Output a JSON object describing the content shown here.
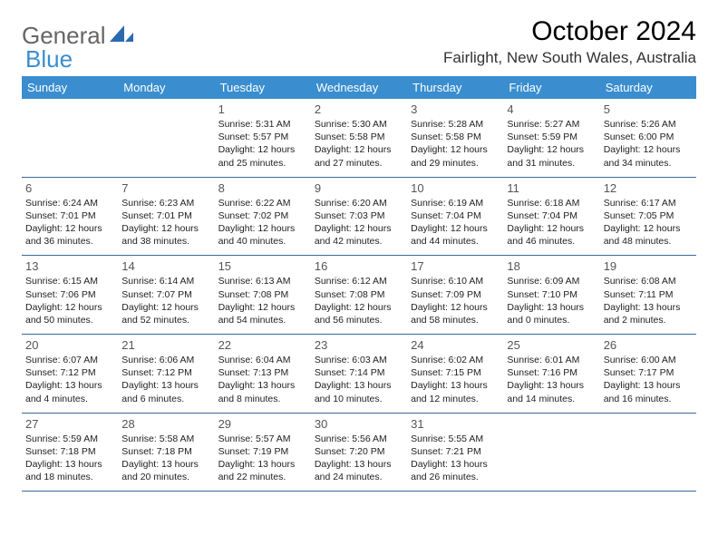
{
  "brand": {
    "word1": "General",
    "word2": "Blue"
  },
  "title": "October 2024",
  "location": "Fairlight, New South Wales, Australia",
  "colors": {
    "header_bg": "#3a8ecf",
    "header_text": "#ffffff",
    "divider": "#3a6a9a",
    "brand_blue": "#3a8ecf",
    "brand_gray": "#666666"
  },
  "weekdays": [
    "Sunday",
    "Monday",
    "Tuesday",
    "Wednesday",
    "Thursday",
    "Friday",
    "Saturday"
  ],
  "weeks": [
    [
      null,
      null,
      {
        "n": "1",
        "sunrise": "5:31 AM",
        "sunset": "5:57 PM",
        "dl1": "Daylight: 12 hours",
        "dl2": "and 25 minutes."
      },
      {
        "n": "2",
        "sunrise": "5:30 AM",
        "sunset": "5:58 PM",
        "dl1": "Daylight: 12 hours",
        "dl2": "and 27 minutes."
      },
      {
        "n": "3",
        "sunrise": "5:28 AM",
        "sunset": "5:58 PM",
        "dl1": "Daylight: 12 hours",
        "dl2": "and 29 minutes."
      },
      {
        "n": "4",
        "sunrise": "5:27 AM",
        "sunset": "5:59 PM",
        "dl1": "Daylight: 12 hours",
        "dl2": "and 31 minutes."
      },
      {
        "n": "5",
        "sunrise": "5:26 AM",
        "sunset": "6:00 PM",
        "dl1": "Daylight: 12 hours",
        "dl2": "and 34 minutes."
      }
    ],
    [
      {
        "n": "6",
        "sunrise": "6:24 AM",
        "sunset": "7:01 PM",
        "dl1": "Daylight: 12 hours",
        "dl2": "and 36 minutes."
      },
      {
        "n": "7",
        "sunrise": "6:23 AM",
        "sunset": "7:01 PM",
        "dl1": "Daylight: 12 hours",
        "dl2": "and 38 minutes."
      },
      {
        "n": "8",
        "sunrise": "6:22 AM",
        "sunset": "7:02 PM",
        "dl1": "Daylight: 12 hours",
        "dl2": "and 40 minutes."
      },
      {
        "n": "9",
        "sunrise": "6:20 AM",
        "sunset": "7:03 PM",
        "dl1": "Daylight: 12 hours",
        "dl2": "and 42 minutes."
      },
      {
        "n": "10",
        "sunrise": "6:19 AM",
        "sunset": "7:04 PM",
        "dl1": "Daylight: 12 hours",
        "dl2": "and 44 minutes."
      },
      {
        "n": "11",
        "sunrise": "6:18 AM",
        "sunset": "7:04 PM",
        "dl1": "Daylight: 12 hours",
        "dl2": "and 46 minutes."
      },
      {
        "n": "12",
        "sunrise": "6:17 AM",
        "sunset": "7:05 PM",
        "dl1": "Daylight: 12 hours",
        "dl2": "and 48 minutes."
      }
    ],
    [
      {
        "n": "13",
        "sunrise": "6:15 AM",
        "sunset": "7:06 PM",
        "dl1": "Daylight: 12 hours",
        "dl2": "and 50 minutes."
      },
      {
        "n": "14",
        "sunrise": "6:14 AM",
        "sunset": "7:07 PM",
        "dl1": "Daylight: 12 hours",
        "dl2": "and 52 minutes."
      },
      {
        "n": "15",
        "sunrise": "6:13 AM",
        "sunset": "7:08 PM",
        "dl1": "Daylight: 12 hours",
        "dl2": "and 54 minutes."
      },
      {
        "n": "16",
        "sunrise": "6:12 AM",
        "sunset": "7:08 PM",
        "dl1": "Daylight: 12 hours",
        "dl2": "and 56 minutes."
      },
      {
        "n": "17",
        "sunrise": "6:10 AM",
        "sunset": "7:09 PM",
        "dl1": "Daylight: 12 hours",
        "dl2": "and 58 minutes."
      },
      {
        "n": "18",
        "sunrise": "6:09 AM",
        "sunset": "7:10 PM",
        "dl1": "Daylight: 13 hours",
        "dl2": "and 0 minutes."
      },
      {
        "n": "19",
        "sunrise": "6:08 AM",
        "sunset": "7:11 PM",
        "dl1": "Daylight: 13 hours",
        "dl2": "and 2 minutes."
      }
    ],
    [
      {
        "n": "20",
        "sunrise": "6:07 AM",
        "sunset": "7:12 PM",
        "dl1": "Daylight: 13 hours",
        "dl2": "and 4 minutes."
      },
      {
        "n": "21",
        "sunrise": "6:06 AM",
        "sunset": "7:12 PM",
        "dl1": "Daylight: 13 hours",
        "dl2": "and 6 minutes."
      },
      {
        "n": "22",
        "sunrise": "6:04 AM",
        "sunset": "7:13 PM",
        "dl1": "Daylight: 13 hours",
        "dl2": "and 8 minutes."
      },
      {
        "n": "23",
        "sunrise": "6:03 AM",
        "sunset": "7:14 PM",
        "dl1": "Daylight: 13 hours",
        "dl2": "and 10 minutes."
      },
      {
        "n": "24",
        "sunrise": "6:02 AM",
        "sunset": "7:15 PM",
        "dl1": "Daylight: 13 hours",
        "dl2": "and 12 minutes."
      },
      {
        "n": "25",
        "sunrise": "6:01 AM",
        "sunset": "7:16 PM",
        "dl1": "Daylight: 13 hours",
        "dl2": "and 14 minutes."
      },
      {
        "n": "26",
        "sunrise": "6:00 AM",
        "sunset": "7:17 PM",
        "dl1": "Daylight: 13 hours",
        "dl2": "and 16 minutes."
      }
    ],
    [
      {
        "n": "27",
        "sunrise": "5:59 AM",
        "sunset": "7:18 PM",
        "dl1": "Daylight: 13 hours",
        "dl2": "and 18 minutes."
      },
      {
        "n": "28",
        "sunrise": "5:58 AM",
        "sunset": "7:18 PM",
        "dl1": "Daylight: 13 hours",
        "dl2": "and 20 minutes."
      },
      {
        "n": "29",
        "sunrise": "5:57 AM",
        "sunset": "7:19 PM",
        "dl1": "Daylight: 13 hours",
        "dl2": "and 22 minutes."
      },
      {
        "n": "30",
        "sunrise": "5:56 AM",
        "sunset": "7:20 PM",
        "dl1": "Daylight: 13 hours",
        "dl2": "and 24 minutes."
      },
      {
        "n": "31",
        "sunrise": "5:55 AM",
        "sunset": "7:21 PM",
        "dl1": "Daylight: 13 hours",
        "dl2": "and 26 minutes."
      },
      null,
      null
    ]
  ]
}
